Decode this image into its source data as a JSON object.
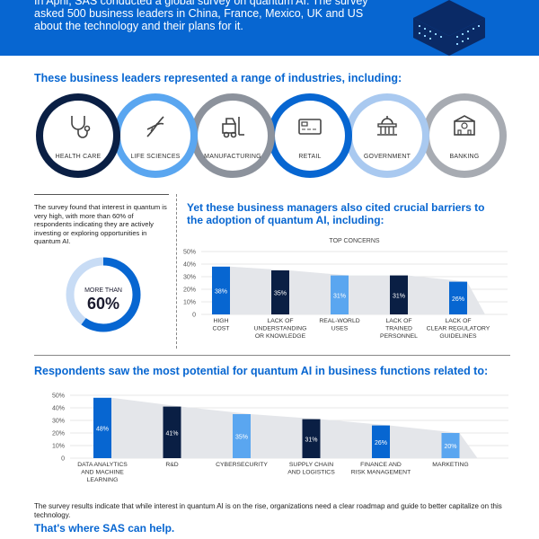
{
  "header": {
    "intro": "In April, SAS conducted a global survey on quantum AI. The survey asked 500 business leaders in China, France, Mexico, UK and US about the technology and their plans for it."
  },
  "industries": {
    "title": "These business leaders represented a range of industries, including:",
    "items": [
      {
        "label": "HEALTH CARE",
        "icon": "stethoscope-icon",
        "color": "#0a1f44"
      },
      {
        "label": "LIFE SCIENCES",
        "icon": "dna-icon",
        "color": "#5aa6f0"
      },
      {
        "label": "MANUFACTURING",
        "icon": "forklift-icon",
        "color": "#8c929c"
      },
      {
        "label": "RETAIL",
        "icon": "credit-card-icon",
        "color": "#0766d1"
      },
      {
        "label": "GOVERNMENT",
        "icon": "capitol-icon",
        "color": "#a9c9f0"
      },
      {
        "label": "BANKING",
        "icon": "bank-icon",
        "color": "#a7abb2"
      }
    ]
  },
  "interest": {
    "text": "The survey found that interest in quantum is very high, with more than 60% of respondents indicating they are actively investing or exploring opportunities in quantum AI.",
    "donut_small": "MORE THAN",
    "donut_big": "60%",
    "value_percent": 60
  },
  "barriers": {
    "title": "Yet these business managers also cited crucial barriers to the adoption of quantum AI, including:"
  },
  "functions": {
    "title": "Respondents saw the most potential for quantum AI in business functions related to:"
  },
  "footer": {
    "text": "The survey results indicate that while interest in quantum AI is on the rise, organizations need a clear roadmap and guide to better capitalize on this technology.",
    "cta": "That's where SAS can help."
  },
  "colors": {
    "brand_blue": "#0766d1",
    "navy": "#0a1f44",
    "light_blue": "#5aa6f0"
  },
  "chart_data": [
    {
      "type": "bar",
      "title": "TOP CONCERNS",
      "categories": [
        [
          "HIGH",
          "COST"
        ],
        [
          "LACK OF",
          "UNDERSTANDING",
          "OR KNOWLEDGE"
        ],
        [
          "REAL-WORLD",
          "USES"
        ],
        [
          "LACK OF",
          "TRAINED",
          "PERSONNEL"
        ],
        [
          "LACK OF",
          "CLEAR REGULATORY",
          "GUIDELINES"
        ]
      ],
      "values": [
        38,
        35,
        31,
        31,
        26
      ],
      "value_labels": [
        "38%",
        "35%",
        "31%",
        "31%",
        "26%"
      ],
      "bar_colors": [
        "#0766d1",
        "#0a1f44",
        "#5aa6f0",
        "#0a1f44",
        "#0766d1"
      ],
      "ylim": [
        0,
        50
      ],
      "yticks": [
        "0",
        "10%",
        "20%",
        "30%",
        "40%",
        "50%"
      ]
    },
    {
      "type": "bar",
      "title": "",
      "categories": [
        [
          "DATA ANALYTICS",
          "AND MACHINE",
          "LEARNING"
        ],
        [
          "R&D"
        ],
        [
          "CYBERSECURITY"
        ],
        [
          "SUPPLY CHAIN",
          "AND LOGISTICS"
        ],
        [
          "FINANCE AND",
          "RISK MANAGEMENT"
        ],
        [
          "MARKETING"
        ]
      ],
      "values": [
        48,
        41,
        35,
        31,
        26,
        20
      ],
      "value_labels": [
        "48%",
        "41%",
        "35%",
        "31%",
        "26%",
        "20%"
      ],
      "bar_colors": [
        "#0766d1",
        "#0a1f44",
        "#5aa6f0",
        "#0a1f44",
        "#0766d1",
        "#5aa6f0"
      ],
      "ylim": [
        0,
        50
      ],
      "yticks": [
        "0",
        "10%",
        "20%",
        "30%",
        "40%",
        "50%"
      ]
    }
  ]
}
